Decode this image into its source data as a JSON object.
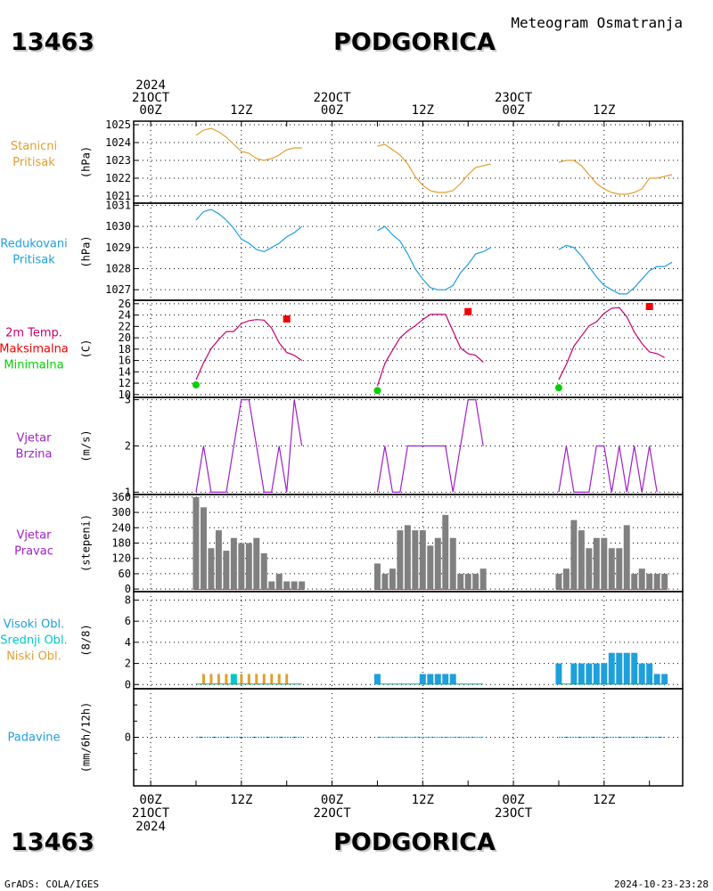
{
  "header": {
    "station_id": "13463",
    "station_name": "PODGORICA",
    "product": "Meteogram Osmatranja"
  },
  "footer": {
    "station_id": "13463",
    "station_name": "PODGORICA",
    "credit": "GrADS: COLA/IGES",
    "timestamp": "2024-10-23-23:28"
  },
  "time_axis": {
    "top": [
      {
        "t": 0,
        "lines": [
          "2024",
          "21OCT",
          "00Z"
        ]
      },
      {
        "t": 12,
        "lines": [
          "12Z"
        ]
      },
      {
        "t": 24,
        "lines": [
          "22OCT",
          "00Z"
        ]
      },
      {
        "t": 36,
        "lines": [
          "12Z"
        ]
      },
      {
        "t": 48,
        "lines": [
          "23OCT",
          "00Z"
        ]
      },
      {
        "t": 60,
        "lines": [
          "12Z"
        ]
      }
    ],
    "bottom": [
      {
        "t": 0,
        "lines": [
          "00Z",
          "21OCT",
          "2024"
        ]
      },
      {
        "t": 12,
        "lines": [
          "12Z"
        ]
      },
      {
        "t": 24,
        "lines": [
          "00Z",
          "22OCT"
        ]
      },
      {
        "t": 36,
        "lines": [
          "12Z"
        ]
      },
      {
        "t": 48,
        "lines": [
          "00Z",
          "23OCT"
        ]
      },
      {
        "t": 60,
        "lines": [
          "12Z"
        ]
      }
    ]
  },
  "colors": {
    "pressure": "#e0a030",
    "reduced": "#1ea0dc",
    "temp": "#c8006e",
    "max": "#f00000",
    "min": "#00d000",
    "wind": "#a020c8",
    "bars": "#808080",
    "high_cloud": "#1ea0dc",
    "mid_cloud": "#00c8c8",
    "low_cloud": "#e0a030",
    "precip": "#1ea0dc"
  },
  "chart_data": [
    {
      "type": "line",
      "panel": "pressure",
      "label": [
        "Stanicni",
        "Pritisak"
      ],
      "ylabel": "(hPa)",
      "ylim": [
        1020.6,
        1025.2
      ],
      "yticks": [
        1021,
        1022,
        1023,
        1024,
        1025
      ],
      "series": [
        {
          "segments": [
            {
              "t0": 6,
              "values": [
                1024.4,
                1024.7,
                1024.8,
                1024.6,
                1024.3,
                1023.9,
                1023.5,
                1023.4,
                1023.1,
                1023.0,
                1023.1,
                1023.3,
                1023.6,
                1023.7,
                1023.7
              ]
            },
            {
              "t0": 30,
              "values": [
                1023.8,
                1023.9,
                1023.6,
                1023.3,
                1022.8,
                1022.1,
                1021.6,
                1021.3,
                1021.2,
                1021.2,
                1021.3,
                1021.7,
                1022.2,
                1022.6,
                1022.7,
                1022.8
              ]
            },
            {
              "t0": 54,
              "values": [
                1022.9,
                1023.0,
                1023.0,
                1022.7,
                1022.2,
                1021.7,
                1021.4,
                1021.2,
                1021.1,
                1021.1,
                1021.2,
                1021.4,
                1022.0,
                1022.0,
                1022.1,
                1022.2
              ]
            }
          ]
        }
      ]
    },
    {
      "type": "line",
      "panel": "reduced_pressure",
      "label": [
        "Redukovani",
        "Pritisak"
      ],
      "ylabel": "(hPa)",
      "ylim": [
        1026.5,
        1031.1
      ],
      "yticks": [
        1027,
        1028,
        1029,
        1030,
        1031
      ],
      "series": [
        {
          "segments": [
            {
              "t0": 6,
              "values": [
                1030.3,
                1030.7,
                1030.8,
                1030.6,
                1030.3,
                1029.9,
                1029.4,
                1029.2,
                1028.9,
                1028.8,
                1029.0,
                1029.2,
                1029.5,
                1029.7,
                1030.0
              ]
            },
            {
              "t0": 30,
              "values": [
                1029.8,
                1030.0,
                1029.6,
                1029.3,
                1028.7,
                1028.0,
                1027.5,
                1027.1,
                1027.0,
                1027.0,
                1027.2,
                1027.8,
                1028.2,
                1028.7,
                1028.8,
                1029.0
              ]
            },
            {
              "t0": 54,
              "values": [
                1028.9,
                1029.1,
                1029.0,
                1028.6,
                1028.1,
                1027.6,
                1027.2,
                1027.0,
                1026.8,
                1026.8,
                1027.1,
                1027.5,
                1027.9,
                1028.1,
                1028.1,
                1028.3
              ]
            }
          ]
        }
      ]
    },
    {
      "type": "line",
      "panel": "temperature",
      "label": [
        "2m Temp.",
        "Maksimalna",
        "Minimalna"
      ],
      "ylabel": "(C)",
      "ylim": [
        9.5,
        26.6
      ],
      "yticks": [
        10,
        12,
        14,
        16,
        18,
        20,
        22,
        24,
        26
      ],
      "series": [
        {
          "segments": [
            {
              "t0": 6,
              "values": [
                12.6,
                15.6,
                18.1,
                19.7,
                21.1,
                21.1,
                22.5,
                23.0,
                23.2,
                23.1,
                21.7,
                19.1,
                17.4,
                16.9,
                16.0
              ]
            },
            {
              "t0": 30,
              "values": [
                11.5,
                15.5,
                17.8,
                20.0,
                21.2,
                22.1,
                23.2,
                24.1,
                24.1,
                24.1,
                21.2,
                18.2,
                17.2,
                16.9,
                15.7
              ]
            },
            {
              "t0": 54,
              "values": [
                12.6,
                15.3,
                18.5,
                20.3,
                22.1,
                22.8,
                24.3,
                25.2,
                25.3,
                23.7,
                21.0,
                19.0,
                17.5,
                17.2,
                16.5
              ]
            }
          ]
        }
      ],
      "maxima": [
        {
          "t": 18,
          "value": 23.3
        },
        {
          "t": 42,
          "value": 24.6
        },
        {
          "t": 66,
          "value": 25.5
        }
      ],
      "minima": [
        {
          "t": 6,
          "value": 11.7
        },
        {
          "t": 30,
          "value": 10.7
        },
        {
          "t": 54,
          "value": 11.2
        }
      ]
    },
    {
      "type": "line",
      "panel": "wind_speed",
      "label": [
        "Vjetar",
        "Brzina"
      ],
      "ylabel": "(m/s)",
      "ylim": [
        0.95,
        3.05
      ],
      "yticks": [
        1,
        2,
        3
      ],
      "series": [
        {
          "segments": [
            {
              "t0": 6,
              "values": [
                1,
                2,
                1,
                1,
                1,
                2,
                3,
                3,
                2,
                1,
                1,
                2,
                1,
                3,
                2
              ]
            },
            {
              "t0": 30,
              "values": [
                1,
                2,
                1,
                1,
                2,
                2,
                2,
                2,
                2,
                2,
                1,
                2,
                3,
                3,
                2
              ]
            },
            {
              "t0": 54,
              "values": [
                1,
                2,
                1,
                1,
                1,
                2,
                2,
                1,
                2,
                1,
                2,
                1,
                2,
                1
              ]
            }
          ]
        }
      ]
    },
    {
      "type": "bar",
      "panel": "wind_direction",
      "label": [
        "Vjetar",
        "Pravac"
      ],
      "ylabel": "(stepeni)",
      "ylim": [
        -10,
        370
      ],
      "yticks": [
        0,
        60,
        120,
        180,
        240,
        300,
        360
      ],
      "series": [
        {
          "segments": [
            {
              "t0": 6,
              "values": [
                360,
                320,
                160,
                230,
                150,
                200,
                180,
                180,
                200,
                140,
                30,
                60,
                30,
                30,
                30
              ]
            },
            {
              "t0": 30,
              "values": [
                100,
                60,
                80,
                230,
                250,
                230,
                230,
                170,
                200,
                290,
                200,
                60,
                60,
                60,
                80
              ]
            },
            {
              "t0": 54,
              "values": [
                60,
                80,
                270,
                230,
                160,
                200,
                200,
                160,
                160,
                250,
                60,
                80,
                60,
                60,
                60
              ]
            }
          ]
        }
      ]
    },
    {
      "type": "bar",
      "panel": "clouds",
      "label": [
        "Visoki Obl.",
        "Srednji Obl.",
        "Niski Obl."
      ],
      "ylabel": "(8/8)",
      "ylim": [
        -0.4,
        8.8
      ],
      "yticks": [
        0,
        2,
        4,
        6,
        8
      ],
      "series": [
        {
          "name": "Visoki Obl.",
          "segments": [
            {
              "t0": 6,
              "values": [
                0,
                0,
                0,
                0,
                0,
                0,
                0,
                0,
                0,
                0,
                0,
                0,
                0,
                0,
                0
              ]
            },
            {
              "t0": 30,
              "values": [
                1,
                0,
                0,
                0,
                0,
                0,
                1,
                1,
                1,
                1,
                1,
                0,
                0,
                0,
                0
              ]
            },
            {
              "t0": 54,
              "values": [
                2,
                0,
                2,
                2,
                2,
                2,
                2,
                3,
                3,
                3,
                3,
                2,
                2,
                1,
                1
              ]
            }
          ]
        },
        {
          "name": "Srednji Obl.",
          "segments": [
            {
              "t0": 6,
              "values": [
                0,
                0,
                0,
                0,
                0,
                1,
                0,
                0,
                0,
                0,
                0,
                0,
                0,
                0,
                0
              ]
            }
          ]
        },
        {
          "name": "Niski Obl.",
          "segments": [
            {
              "t0": 6,
              "values": [
                0,
                1,
                1,
                1,
                1,
                0,
                1,
                1,
                1,
                1,
                1,
                1,
                1,
                0,
                0
              ]
            }
          ]
        }
      ]
    },
    {
      "type": "line",
      "panel": "precipitation",
      "label": [
        "Padavine"
      ],
      "ylabel": "(mm/6h/12h)",
      "ylim": [
        -3,
        3
      ],
      "yticks": [
        0
      ],
      "series": [
        {
          "segments": [
            {
              "t0": 6,
              "values": [
                0,
                0,
                0,
                0,
                0,
                0,
                0,
                0,
                0,
                0,
                0,
                0,
                0,
                0,
                0
              ]
            },
            {
              "t0": 30,
              "values": [
                0,
                0,
                0,
                0,
                0,
                0,
                0,
                0,
                0,
                0,
                0,
                0,
                0,
                0,
                0
              ]
            },
            {
              "t0": 54,
              "values": [
                0,
                0,
                0,
                0,
                0,
                0,
                0,
                0,
                0,
                0,
                0,
                0,
                0,
                0,
                0
              ]
            }
          ]
        }
      ]
    }
  ]
}
